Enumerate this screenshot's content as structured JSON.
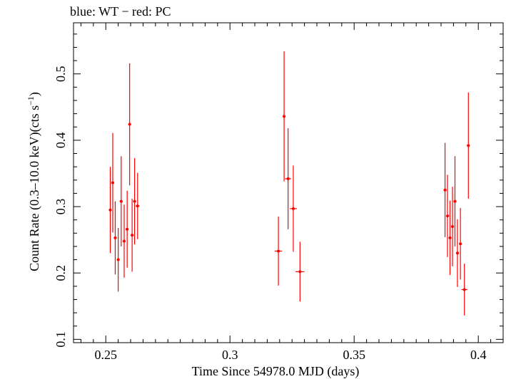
{
  "chart_data": {
    "type": "scatter",
    "title": "blue: WT − red: PC",
    "xlabel": "Time Since 54978.0 MJD (days)",
    "ylabel_main": "Count Rate (0.3–10.0 keV)(cts s",
    "ylabel_sup": "−1",
    "ylabel_close": ")",
    "xlim": [
      0.237,
      0.41
    ],
    "ylim": [
      0.095,
      0.577
    ],
    "xticks": [
      0.25,
      0.3,
      0.35,
      0.4
    ],
    "xtick_labels": [
      "0.25",
      "0.3",
      "0.35",
      "0.4"
    ],
    "yticks": [
      0.1,
      0.2,
      0.3,
      0.4,
      0.5
    ],
    "ytick_labels": [
      "0.1",
      "0.2",
      "0.3",
      "0.4",
      "0.5"
    ],
    "grid": false,
    "series": [
      {
        "color": "#ff0000",
        "points": [
          {
            "x": 0.2518,
            "y": 0.295,
            "xerr": 0.0006,
            "yerr": 0.065
          },
          {
            "x": 0.2528,
            "y": 0.336,
            "xerr": 0.0006,
            "yerr": 0.075
          },
          {
            "x": 0.2538,
            "y": 0.253,
            "xerr": 0.0006,
            "yerr": 0.055
          },
          {
            "x": 0.255,
            "y": 0.22,
            "xerr": 0.0006,
            "yerr": 0.048
          },
          {
            "x": 0.2562,
            "y": 0.308,
            "xerr": 0.0006,
            "yerr": 0.068
          },
          {
            "x": 0.2574,
            "y": 0.248,
            "xerr": 0.0006,
            "yerr": 0.055
          },
          {
            "x": 0.2586,
            "y": 0.266,
            "xerr": 0.0006,
            "yerr": 0.058
          },
          {
            "x": 0.2596,
            "y": 0.424,
            "xerr": 0.0006,
            "yerr": 0.092
          },
          {
            "x": 0.2606,
            "y": 0.257,
            "xerr": 0.0006,
            "yerr": 0.055
          },
          {
            "x": 0.2616,
            "y": 0.308,
            "xerr": 0.0006,
            "yerr": 0.065
          },
          {
            "x": 0.2628,
            "y": 0.301,
            "xerr": 0.0008,
            "yerr": 0.05
          },
          {
            "x": 0.3195,
            "y": 0.233,
            "xerr": 0.0015,
            "yerr": 0.052
          },
          {
            "x": 0.3218,
            "y": 0.436,
            "xerr": 0.0006,
            "yerr": 0.098
          },
          {
            "x": 0.3234,
            "y": 0.342,
            "xerr": 0.0012,
            "yerr": 0.076
          },
          {
            "x": 0.3255,
            "y": 0.297,
            "xerr": 0.0014,
            "yerr": 0.065
          },
          {
            "x": 0.3282,
            "y": 0.202,
            "xerr": 0.0018,
            "yerr": 0.045
          },
          {
            "x": 0.3866,
            "y": 0.325,
            "xerr": 0.0006,
            "yerr": 0.071
          },
          {
            "x": 0.3876,
            "y": 0.286,
            "xerr": 0.0006,
            "yerr": 0.062
          },
          {
            "x": 0.3886,
            "y": 0.253,
            "xerr": 0.0006,
            "yerr": 0.056
          },
          {
            "x": 0.3896,
            "y": 0.27,
            "xerr": 0.0006,
            "yerr": 0.06
          },
          {
            "x": 0.3906,
            "y": 0.308,
            "xerr": 0.0006,
            "yerr": 0.068
          },
          {
            "x": 0.3916,
            "y": 0.23,
            "xerr": 0.0006,
            "yerr": 0.051
          },
          {
            "x": 0.3928,
            "y": 0.244,
            "xerr": 0.0006,
            "yerr": 0.054
          },
          {
            "x": 0.3944,
            "y": 0.175,
            "xerr": 0.0012,
            "yerr": 0.039
          },
          {
            "x": 0.396,
            "y": 0.392,
            "xerr": 0.0006,
            "yerr": 0.08
          }
        ]
      }
    ]
  }
}
